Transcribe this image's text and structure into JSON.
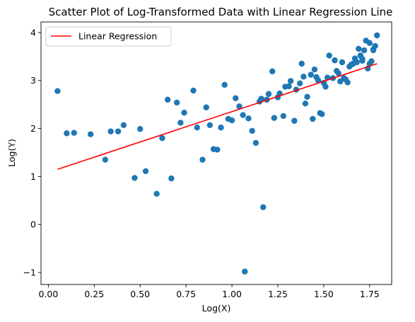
{
  "chart_data": {
    "type": "scatter",
    "title": "Scatter Plot of Log-Transformed Data with Linear Regression Line",
    "xlabel": "Log(X)",
    "ylabel": "Log(Y)",
    "xlim": [
      -0.04,
      1.87
    ],
    "ylim": [
      -1.25,
      4.22
    ],
    "xticks": [
      0.0,
      0.25,
      0.5,
      0.75,
      1.0,
      1.25,
      1.5,
      1.75
    ],
    "xtick_labels": [
      "0.00",
      "0.25",
      "0.50",
      "0.75",
      "1.00",
      "1.25",
      "1.50",
      "1.75"
    ],
    "yticks": [
      -1,
      0,
      1,
      2,
      3,
      4
    ],
    "ytick_labels": [
      "−1",
      "0",
      "1",
      "2",
      "3",
      "4"
    ],
    "grid": false,
    "legend": {
      "placement": "upper-left",
      "entries": [
        {
          "label": "Linear Regression",
          "color": "#ff0000"
        }
      ]
    },
    "series": [
      {
        "kind": "scatter",
        "color": "#1f77b4",
        "points": [
          [
            0.05,
            2.78
          ],
          [
            0.1,
            1.9
          ],
          [
            0.14,
            1.91
          ],
          [
            0.23,
            1.88
          ],
          [
            0.31,
            1.35
          ],
          [
            0.34,
            1.94
          ],
          [
            0.38,
            1.94
          ],
          [
            0.41,
            2.07
          ],
          [
            0.47,
            0.97
          ],
          [
            0.5,
            1.99
          ],
          [
            0.53,
            1.11
          ],
          [
            0.59,
            0.64
          ],
          [
            0.62,
            1.8
          ],
          [
            0.65,
            2.6
          ],
          [
            0.67,
            0.96
          ],
          [
            0.7,
            2.54
          ],
          [
            0.72,
            2.12
          ],
          [
            0.74,
            2.33
          ],
          [
            0.79,
            2.79
          ],
          [
            0.81,
            2.02
          ],
          [
            0.84,
            1.35
          ],
          [
            0.86,
            2.44
          ],
          [
            0.88,
            2.07
          ],
          [
            0.9,
            1.57
          ],
          [
            0.92,
            1.56
          ],
          [
            0.94,
            2.02
          ],
          [
            0.96,
            2.91
          ],
          [
            0.98,
            2.2
          ],
          [
            1.0,
            2.17
          ],
          [
            1.02,
            2.63
          ],
          [
            1.04,
            2.46
          ],
          [
            1.06,
            2.28
          ],
          [
            1.07,
            -0.98
          ],
          [
            1.09,
            2.21
          ],
          [
            1.11,
            1.95
          ],
          [
            1.13,
            1.7
          ],
          [
            1.15,
            2.56
          ],
          [
            1.16,
            2.62
          ],
          [
            1.17,
            0.36
          ],
          [
            1.19,
            2.6
          ],
          [
            1.2,
            2.72
          ],
          [
            1.22,
            3.19
          ],
          [
            1.23,
            2.22
          ],
          [
            1.25,
            2.65
          ],
          [
            1.26,
            2.73
          ],
          [
            1.28,
            2.26
          ],
          [
            1.29,
            2.87
          ],
          [
            1.31,
            2.88
          ],
          [
            1.32,
            2.99
          ],
          [
            1.34,
            2.16
          ],
          [
            1.35,
            2.81
          ],
          [
            1.37,
            2.94
          ],
          [
            1.38,
            3.35
          ],
          [
            1.39,
            3.08
          ],
          [
            1.4,
            2.52
          ],
          [
            1.41,
            2.66
          ],
          [
            1.43,
            3.12
          ],
          [
            1.44,
            2.2
          ],
          [
            1.45,
            3.23
          ],
          [
            1.46,
            3.07
          ],
          [
            1.47,
            3.0
          ],
          [
            1.48,
            2.32
          ],
          [
            1.49,
            2.3
          ],
          [
            1.5,
            2.95
          ],
          [
            1.51,
            2.87
          ],
          [
            1.52,
            3.06
          ],
          [
            1.53,
            3.52
          ],
          [
            1.55,
            3.05
          ],
          [
            1.56,
            3.42
          ],
          [
            1.57,
            3.2
          ],
          [
            1.58,
            3.15
          ],
          [
            1.59,
            2.98
          ],
          [
            1.6,
            3.38
          ],
          [
            1.61,
            3.05
          ],
          [
            1.62,
            3.02
          ],
          [
            1.63,
            2.96
          ],
          [
            1.64,
            3.29
          ],
          [
            1.65,
            3.33
          ],
          [
            1.66,
            3.35
          ],
          [
            1.67,
            3.46
          ],
          [
            1.68,
            3.38
          ],
          [
            1.69,
            3.66
          ],
          [
            1.7,
            3.52
          ],
          [
            1.71,
            3.41
          ],
          [
            1.72,
            3.63
          ],
          [
            1.73,
            3.83
          ],
          [
            1.74,
            3.25
          ],
          [
            1.75,
            3.78
          ],
          [
            1.76,
            3.4
          ],
          [
            1.77,
            3.65
          ],
          [
            1.78,
            3.72
          ],
          [
            1.79,
            3.94
          ],
          [
            1.77,
            3.63
          ],
          [
            1.75,
            3.35
          ],
          [
            1.71,
            3.45
          ]
        ]
      },
      {
        "kind": "line",
        "name": "Linear Regression",
        "color": "#ff0000",
        "x": [
          0.05,
          1.79
        ],
        "y": [
          1.15,
          3.35
        ]
      }
    ]
  }
}
